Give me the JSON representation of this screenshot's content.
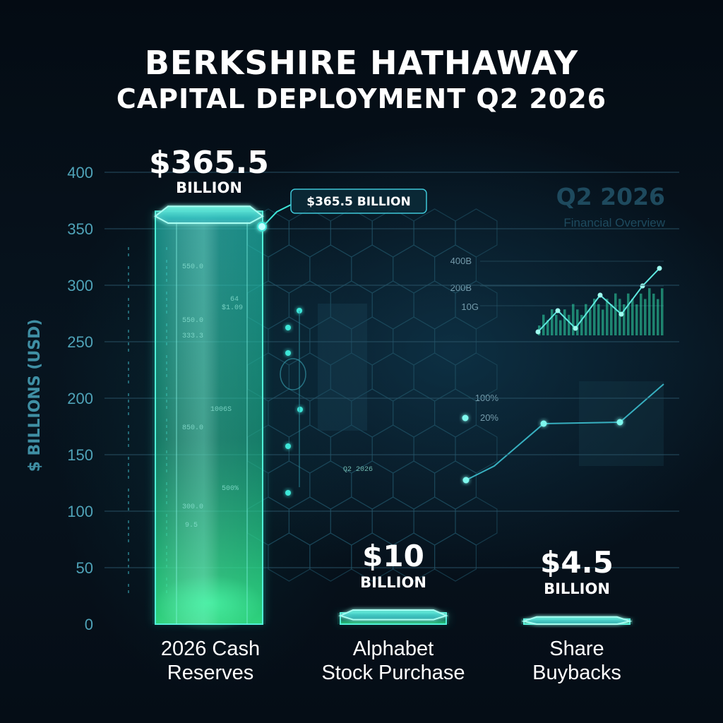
{
  "title": "BERKSHIRE HATHAWAY",
  "subtitle": "CAPITAL DEPLOYMENT Q2 2026",
  "colors": {
    "accent": "#2ee8c8",
    "accent_green": "#3cf29a",
    "grid": "#2a5468",
    "axis": "#3a97c0",
    "background": "#050d16"
  },
  "watermark": {
    "title": "Q2 2026",
    "subtitle": "Financial Overview"
  },
  "callout": {
    "text": "$365.5 BILLION"
  },
  "decor_text": {
    "bar_labels": [
      "550.0",
      "550.0",
      "333.3",
      "1006S",
      "850.0",
      "500%",
      "300.0",
      "9.5",
      "$1.09",
      "64"
    ],
    "mini_chart_labels": [
      "400B",
      "200B",
      "10G"
    ],
    "percent_labels": [
      "100%",
      "20%"
    ],
    "panel_label": "Q2 2026"
  },
  "chart_data": {
    "type": "bar",
    "title": "BERKSHIRE HATHAWAY CAPITAL DEPLOYMENT Q2 2026",
    "xlabel": "",
    "ylabel": "$ BILLIONS (USD)",
    "ylim": [
      0,
      400
    ],
    "yticks": [
      0,
      50,
      100,
      150,
      200,
      250,
      300,
      350,
      400
    ],
    "grid": true,
    "categories": [
      [
        "2026 Cash",
        "Reserves"
      ],
      [
        "Alphabet",
        "Stock Purchase"
      ],
      [
        "Share",
        "Buybacks"
      ]
    ],
    "values": [
      365.5,
      10,
      4.5
    ],
    "value_labels": [
      {
        "amount": "$365.5",
        "unit": "BILLION"
      },
      {
        "amount": "$10",
        "unit": "BILLION"
      },
      {
        "amount": "$4.5",
        "unit": "BILLION"
      }
    ]
  }
}
